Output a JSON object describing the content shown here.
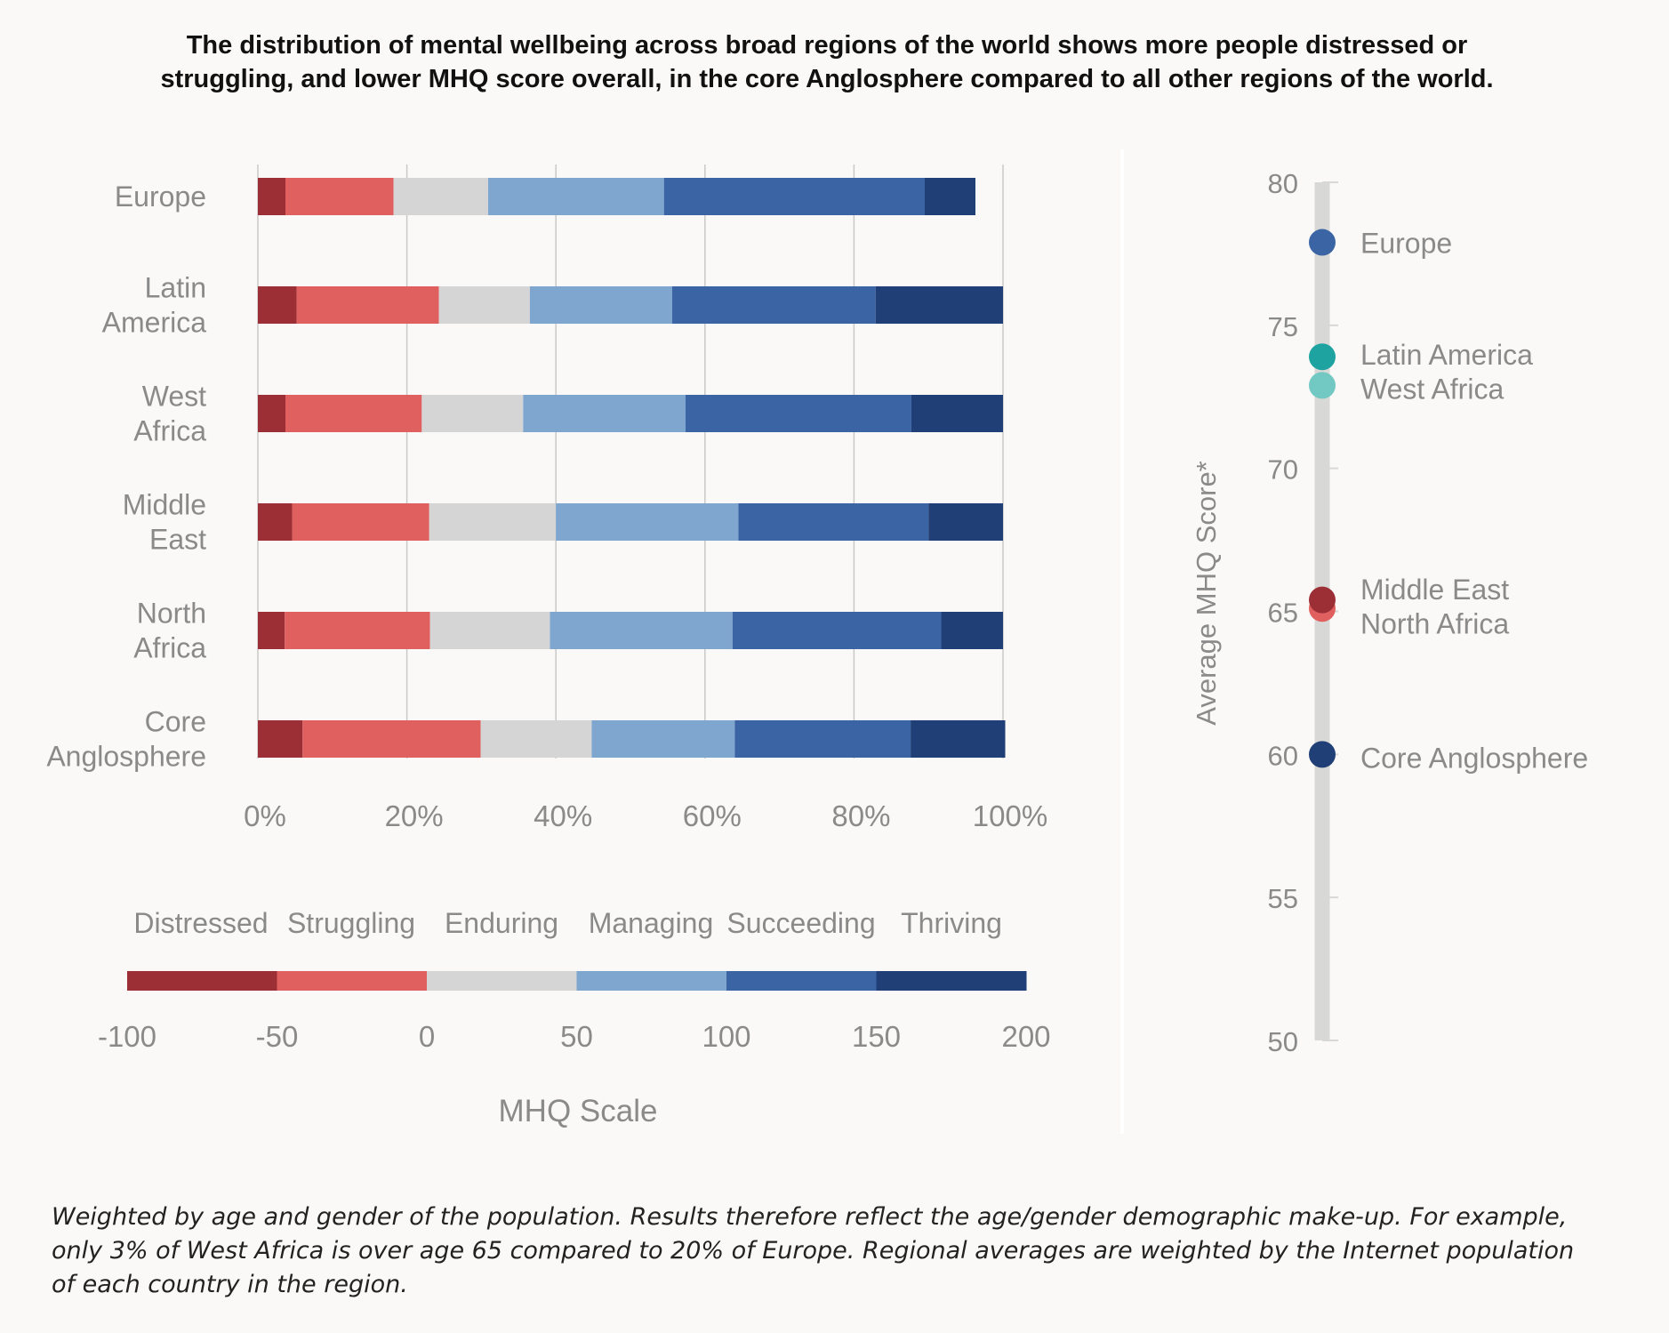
{
  "title_lines": [
    "The distribution of mental wellbeing across broad regions of the world shows more people distressed or",
    "struggling, and lower MHQ score overall, in the core Anglosphere compared to all other regions of the world."
  ],
  "footnote_lines": [
    "Weighted by age and gender of the population. Results therefore reflect the age/gender demographic make-up. For example,",
    "only 3% of West Africa is over age 65 compared to 20% of Europe. Regional averages are weighted by the Internet population",
    "of each country in the region."
  ],
  "colors": {
    "Distressed": "#9b2f35",
    "Struggling": "#e06060",
    "Enduring": "#d6d5d5",
    "Managing": "#7fa6cf",
    "Succeeding": "#3a64a4",
    "Thriving": "#203f76",
    "axis_text": "#8a8a8a",
    "gridline": "#c9c9c9",
    "track": "#d8d8d6"
  },
  "chart_data": [
    {
      "type": "bar",
      "stacked": true,
      "orientation": "horizontal",
      "categories": [
        [
          "Europe"
        ],
        [
          "Latin",
          "America"
        ],
        [
          "West",
          "Africa"
        ],
        [
          "Middle",
          "East"
        ],
        [
          "North",
          "Africa"
        ],
        [
          "Core",
          "Anglosphere"
        ]
      ],
      "series": [
        {
          "name": "Distressed",
          "values": [
            3.7,
            5.2,
            3.7,
            4.6,
            3.6,
            6.0
          ]
        },
        {
          "name": "Struggling",
          "values": [
            14.5,
            19.1,
            18.3,
            18.4,
            19.5,
            23.9
          ]
        },
        {
          "name": "Enduring",
          "values": [
            12.7,
            12.2,
            13.6,
            17.0,
            16.1,
            14.9
          ]
        },
        {
          "name": "Managing",
          "values": [
            23.6,
            19.1,
            21.8,
            24.5,
            24.5,
            19.2
          ]
        },
        {
          "name": "Succeeding",
          "values": [
            35.0,
            27.3,
            30.3,
            25.5,
            28.0,
            23.6
          ]
        },
        {
          "name": "Thriving",
          "values": [
            6.8,
            17.1,
            12.3,
            10.0,
            8.3,
            12.7
          ]
        }
      ],
      "xlim": [
        0,
        100
      ],
      "xticks": [
        "0%",
        "20%",
        "40%",
        "60%",
        "80%",
        "100%"
      ],
      "grid": true,
      "legend": {
        "labels": [
          "Distressed",
          "Struggling",
          "Enduring",
          "Managing",
          "Succeeding",
          "Thriving"
        ],
        "scale_ticks": [
          "-100",
          "-50",
          "0",
          "50",
          "100",
          "150",
          "200"
        ],
        "scale_range": [
          -100,
          200
        ],
        "scale_label": "MHQ Scale"
      }
    },
    {
      "type": "scatter",
      "ylabel": "Average MHQ Score*",
      "ylim": [
        50,
        80
      ],
      "yticks": [
        "80",
        "75",
        "70",
        "65",
        "60",
        "55",
        "50"
      ],
      "points": [
        {
          "region": "Europe",
          "value": 77.9,
          "color": "#3a64a4"
        },
        {
          "region": "Latin America",
          "value": 73.9,
          "color": "#1fa3a0"
        },
        {
          "region": "West Africa",
          "value": 72.9,
          "color": "#72c8c2"
        },
        {
          "region": "North Africa",
          "value": 65.1,
          "color": "#e06060"
        },
        {
          "region": "Middle East",
          "value": 65.4,
          "color": "#9b2f35"
        },
        {
          "region": "Core Anglosphere",
          "value": 60.0,
          "color": "#203f76"
        }
      ],
      "point_labels": [
        {
          "text": "Europe",
          "value": 77.9
        },
        {
          "text": "Latin America",
          "value": 74.0
        },
        {
          "text": "West Africa",
          "value": 72.8
        },
        {
          "text": "Middle East",
          "value": 65.8
        },
        {
          "text": "North Africa",
          "value": 64.6
        },
        {
          "text": "Core Anglosphere",
          "value": 59.9
        }
      ]
    }
  ]
}
